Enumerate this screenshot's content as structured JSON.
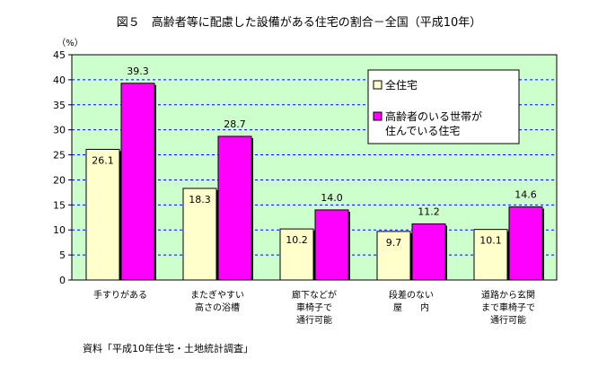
{
  "title": "図５　高齢者等に配慮した設備がある住宅の割合－全国（平成10年）",
  "source": "資料「平成10年住宅・土地統計調査」",
  "colors": {
    "plot_bg": "#ccffcc",
    "series_all": "#ffffcc",
    "series_elderly": "#ff00ff",
    "grid": "#0000ff"
  },
  "chart_data": {
    "type": "bar",
    "ylabel": "（%）",
    "ylim": [
      0,
      45
    ],
    "yticks": [
      "0",
      "5",
      "10",
      "15",
      "20",
      "25",
      "30",
      "35",
      "40",
      "45"
    ],
    "legend_position": "top-right",
    "categories": [
      [
        "手すりがある"
      ],
      [
        "またぎやすい",
        "高さの浴槽"
      ],
      [
        "廊下などが",
        "車椅子で",
        "通行可能"
      ],
      [
        "段差のない",
        "屋　　内"
      ],
      [
        "道路から玄関",
        "まで車椅子で",
        "通行可能"
      ]
    ],
    "series": [
      {
        "name": "全住宅",
        "values": [
          26.1,
          18.3,
          10.2,
          9.7,
          10.1
        ]
      },
      {
        "name": "高齢者のいる世帯が住んでいる住宅",
        "legend_lines": [
          "高齢者のいる世帯が",
          "住んでいる住宅"
        ],
        "values": [
          39.3,
          28.7,
          14.0,
          11.2,
          14.6
        ]
      }
    ],
    "data_labels": [
      [
        "26.1",
        "18.3",
        "10.2",
        "9.7",
        "10.1"
      ],
      [
        "39.3",
        "28.7",
        "14.0",
        "11.2",
        "14.6"
      ]
    ]
  }
}
